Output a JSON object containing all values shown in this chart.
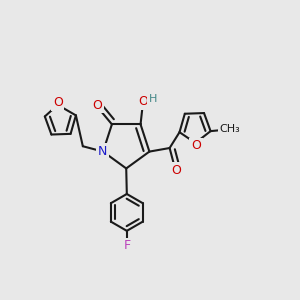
{
  "background_color": "#e8e8e8",
  "bond_color": "#1a1a1a",
  "bond_width": 1.5,
  "atom_colors": {
    "O": "#cc0000",
    "N": "#1a1acc",
    "F": "#bb44bb",
    "H": "#448888",
    "C": "#1a1a1a"
  },
  "font_size_atom": 9,
  "font_size_small": 8
}
